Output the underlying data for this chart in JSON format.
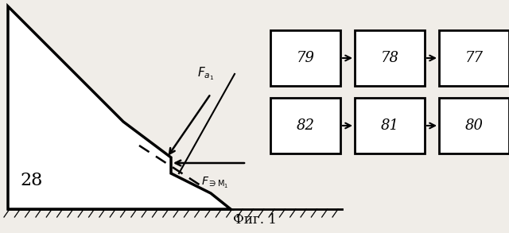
{
  "bg_color": "#f0ede8",
  "fig_caption": "Фиг. 1",
  "label_28_text": "28",
  "box_labels_top": [
    "79",
    "78",
    "77"
  ],
  "box_labels_bot": [
    "82",
    "81",
    "80"
  ]
}
